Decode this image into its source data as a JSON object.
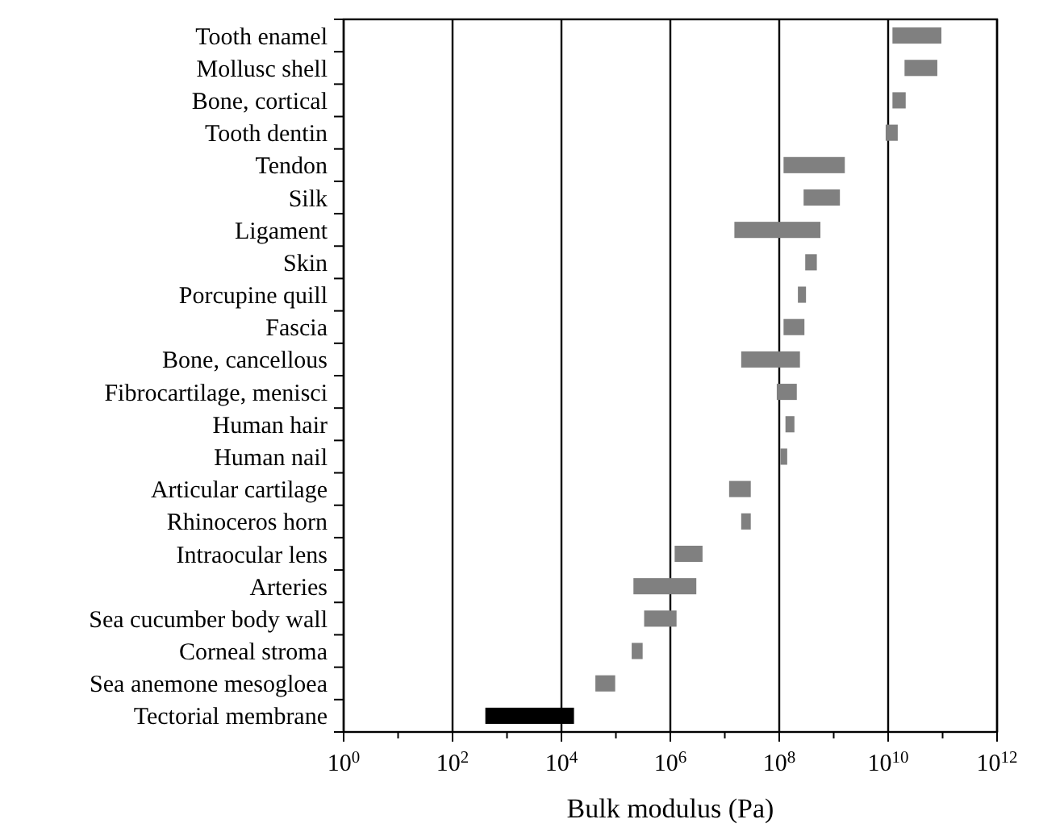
{
  "chart_data": {
    "type": "bar",
    "orientation": "horizontal",
    "log": "x",
    "grid": "x",
    "xlabel": "Bulk modulus (Pa)",
    "categories": [
      "Tooth enamel",
      "Mollusc shell",
      "Bone, cortical",
      "Tooth dentin",
      "Tendon",
      "Silk",
      "Ligament",
      "Skin",
      "Porcupine quill",
      "Fascia",
      "Bone, cancellous",
      "Fibrocartilage, menisci",
      "Human hair",
      "Human nail",
      "Articular cartilage",
      "Rhinoceros horn",
      "Intraocular lens",
      "Arteries",
      "Sea cucumber body wall",
      "Corneal stroma",
      "Sea anemone mesogloea",
      "Tectorial membrane"
    ],
    "base": [
      12000000000.0,
      20000000000.0,
      12000000000.0,
      9000000000.0,
      120000000.0,
      280000000.0,
      15000000.0,
      300000000.0,
      220000000.0,
      120000000.0,
      20000000.0,
      90000000.0,
      130000000.0,
      105000000.0,
      12000000.0,
      20000000.0,
      1200000.0,
      210000.0,
      330000.0,
      195000.0,
      42000.0,
      400
    ],
    "values": [
      83000000000.0,
      60000000000.0,
      9000000000.0,
      6000000000.0,
      1480000000.0,
      1020000000.0,
      555000000.0,
      190000000.0,
      90000000.0,
      170000000.0,
      220000000.0,
      120000000.0,
      60000000.0,
      35000000.0,
      18000000.0,
      10000000.0,
      2700000.0,
      2790000.0,
      970000.0,
      115000.0,
      55000.0,
      16600
    ],
    "colors": [
      "#808080",
      "#808080",
      "#808080",
      "#808080",
      "#808080",
      "#808080",
      "#808080",
      "#808080",
      "#808080",
      "#808080",
      "#808080",
      "#808080",
      "#808080",
      "#808080",
      "#808080",
      "#808080",
      "#808080",
      "#808080",
      "#808080",
      "#808080",
      "#808080",
      "#000000"
    ],
    "xlim": [
      1,
      1000000000000.0
    ],
    "xticks": [
      {
        "value": 1,
        "label": "10$^{0}$"
      },
      {
        "value": 10,
        "label": null
      },
      {
        "value": 100,
        "label": "10$^{2}$"
      },
      {
        "value": 1000,
        "label": null
      },
      {
        "value": 10000,
        "label": "10$^{4}$"
      },
      {
        "value": 100000,
        "label": null
      },
      {
        "value": 1000000,
        "label": "10$^{6}$"
      },
      {
        "value": 10000000,
        "label": null
      },
      {
        "value": 100000000,
        "label": "10$^{8}$"
      },
      {
        "value": 1000000000,
        "label": null
      },
      {
        "value": 10000000000,
        "label": "10$^{10}$"
      },
      {
        "value": 100000000000,
        "label": null
      },
      {
        "value": 1000000000000,
        "label": "10$^{12}$"
      }
    ]
  }
}
